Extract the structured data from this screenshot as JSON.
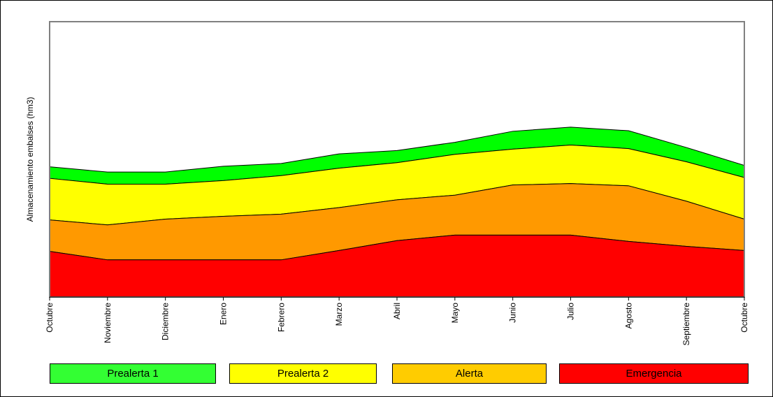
{
  "chart_data": {
    "type": "area",
    "stacked": true,
    "ylabel": "Almacenamiento embalses (hm3)",
    "xlabel": "",
    "title": "",
    "categories": [
      "Octubre",
      "Noviembre",
      "Diciembre",
      "Enero",
      "Febrero",
      "Marzo",
      "Abril",
      "Mayo",
      "Junio",
      "Julio",
      "Agosto",
      "Septiembre",
      "Octubre"
    ],
    "ylim": [
      0,
      100
    ],
    "grid": false,
    "legend_placement": "bottom",
    "series": [
      {
        "name": "Emergencia",
        "color": "#FF0000",
        "values": [
          16.6,
          13.5,
          13.5,
          13.5,
          13.5,
          16.9,
          20.5,
          22.5,
          22.5,
          22.5,
          20.2,
          18.4,
          16.9
        ]
      },
      {
        "name": "Alerta",
        "color": "#FF9900",
        "values": [
          11.4,
          12.7,
          14.8,
          15.8,
          16.6,
          15.6,
          14.8,
          14.5,
          18.2,
          18.7,
          20.2,
          16.4,
          11.4
        ]
      },
      {
        "name": "Prealerta 2",
        "color": "#FFFF00",
        "values": [
          15.1,
          14.8,
          12.7,
          13.0,
          14.0,
          14.3,
          13.5,
          14.8,
          13.0,
          14.0,
          13.5,
          14.3,
          15.1
        ]
      },
      {
        "name": "Prealerta 1",
        "color": "#00FF00",
        "values": [
          4.2,
          4.4,
          4.4,
          5.2,
          4.4,
          5.2,
          4.4,
          4.4,
          6.5,
          6.5,
          6.5,
          5.2,
          4.4
        ]
      }
    ],
    "legend": [
      {
        "label": "Prealerta 1",
        "color": "#33FF33"
      },
      {
        "label": "Prealerta 2",
        "color": "#FFFF00"
      },
      {
        "label": "Alerta",
        "color": "#FFCC00"
      },
      {
        "label": "Emergencia",
        "color": "#FF0000"
      }
    ]
  }
}
